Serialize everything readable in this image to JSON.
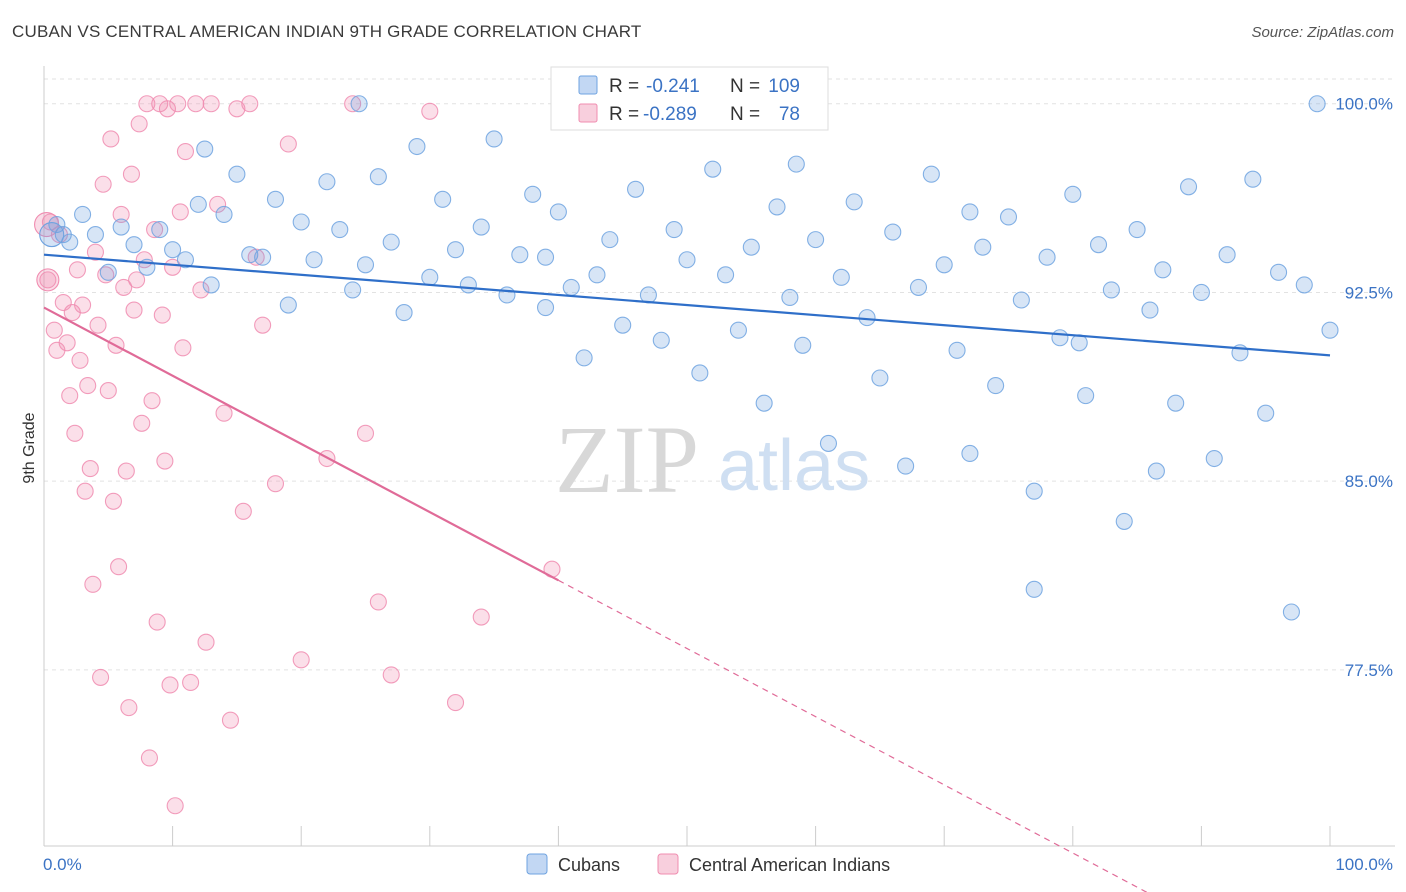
{
  "header": {
    "title": "CUBAN VS CENTRAL AMERICAN INDIAN 9TH GRADE CORRELATION CHART",
    "source": "Source: ZipAtlas.com"
  },
  "watermark": {
    "zip": "ZIP",
    "atlas": "atlas"
  },
  "colors": {
    "cubans": "#6fa3e0",
    "cubans_line": "#2f6fc9",
    "cai": "#f08cb0",
    "cai_line": "#e06b98",
    "tick_text": "#3b73c4"
  },
  "legend": {
    "r_label": "R =",
    "n_label": "N =",
    "rows": [
      {
        "r": "-0.241",
        "n": "109"
      },
      {
        "r": "-0.289",
        "n": "78"
      }
    ]
  },
  "chart_data": {
    "type": "scatter",
    "title": "CUBAN VS CENTRAL AMERICAN INDIAN 9TH GRADE CORRELATION CHART",
    "xlabel": "",
    "ylabel": "9th Grade",
    "xlim": [
      0,
      100
    ],
    "ylim": [
      70.5,
      101.5
    ],
    "x_tick_labels": [
      "0.0%",
      "100.0%"
    ],
    "y_ticks": [
      100.0,
      92.5,
      85.0,
      77.5
    ],
    "y_tick_labels": [
      "100.0%",
      "92.5%",
      "85.0%",
      "77.5%"
    ],
    "grid": true,
    "legend_position": "top-center",
    "series": [
      {
        "name": "Cubans",
        "trend": {
          "x0": 0,
          "y0": 94.0,
          "x1": 100,
          "y1": 90.0,
          "solid_to": 100
        },
        "points": [
          [
            1,
            95.2
          ],
          [
            2,
            94.5
          ],
          [
            3,
            95.6
          ],
          [
            4,
            94.8
          ],
          [
            5,
            93.3
          ],
          [
            6,
            95.1
          ],
          [
            7,
            94.4
          ],
          [
            8,
            93.5
          ],
          [
            9,
            95.0
          ],
          [
            10,
            94.2
          ],
          [
            11,
            93.8
          ],
          [
            12,
            96.0
          ],
          [
            13,
            92.8
          ],
          [
            14,
            95.6
          ],
          [
            15,
            97.2
          ],
          [
            16,
            94.0
          ],
          [
            17,
            93.9
          ],
          [
            18,
            96.2
          ],
          [
            19,
            92.0
          ],
          [
            20,
            95.3
          ],
          [
            21,
            93.8
          ],
          [
            22,
            96.9
          ],
          [
            23,
            95.0
          ],
          [
            24,
            92.6
          ],
          [
            25,
            93.6
          ],
          [
            26,
            97.1
          ],
          [
            27,
            94.5
          ],
          [
            28,
            91.7
          ],
          [
            29,
            98.3
          ],
          [
            30,
            93.1
          ],
          [
            31,
            96.2
          ],
          [
            32,
            94.2
          ],
          [
            33,
            92.8
          ],
          [
            34,
            95.1
          ],
          [
            35,
            98.6
          ],
          [
            36,
            92.4
          ],
          [
            37,
            94.0
          ],
          [
            38,
            96.4
          ],
          [
            39,
            93.9
          ],
          [
            40,
            95.7
          ],
          [
            41,
            92.7
          ],
          [
            42,
            89.9
          ],
          [
            43,
            93.2
          ],
          [
            44,
            94.6
          ],
          [
            45,
            91.2
          ],
          [
            46,
            96.6
          ],
          [
            47,
            92.4
          ],
          [
            48,
            90.6
          ],
          [
            49,
            95.0
          ],
          [
            50,
            93.8
          ],
          [
            51,
            89.3
          ],
          [
            52,
            97.4
          ],
          [
            53,
            93.2
          ],
          [
            54,
            91.0
          ],
          [
            55,
            94.3
          ],
          [
            56,
            88.1
          ],
          [
            57,
            95.9
          ],
          [
            58,
            92.3
          ],
          [
            59,
            90.4
          ],
          [
            60,
            94.6
          ],
          [
            61,
            86.5
          ],
          [
            62,
            93.1
          ],
          [
            63,
            96.1
          ],
          [
            64,
            91.5
          ],
          [
            65,
            89.1
          ],
          [
            66,
            94.9
          ],
          [
            67,
            85.6
          ],
          [
            68,
            92.7
          ],
          [
            69,
            97.2
          ],
          [
            70,
            93.6
          ],
          [
            71,
            90.2
          ],
          [
            72,
            86.1
          ],
          [
            73,
            94.3
          ],
          [
            74,
            88.8
          ],
          [
            75,
            95.5
          ],
          [
            76,
            92.2
          ],
          [
            77,
            84.6
          ],
          [
            78,
            93.9
          ],
          [
            79,
            90.7
          ],
          [
            80,
            96.4
          ],
          [
            81,
            88.4
          ],
          [
            82,
            94.4
          ],
          [
            83,
            92.6
          ],
          [
            84,
            83.4
          ],
          [
            85,
            95.0
          ],
          [
            86,
            91.8
          ],
          [
            87,
            93.4
          ],
          [
            88,
            88.1
          ],
          [
            89,
            96.7
          ],
          [
            90,
            92.5
          ],
          [
            91,
            85.9
          ],
          [
            92,
            94.0
          ],
          [
            93,
            90.1
          ],
          [
            94,
            97.0
          ],
          [
            95,
            87.7
          ],
          [
            96,
            93.3
          ],
          [
            97,
            79.8
          ],
          [
            98,
            92.8
          ],
          [
            99,
            100.0
          ],
          [
            100,
            91.0
          ],
          [
            1.5,
            94.8
          ],
          [
            12.5,
            98.2
          ],
          [
            24.5,
            100.0
          ],
          [
            39,
            91.9
          ],
          [
            58.5,
            97.6
          ],
          [
            72,
            95.7
          ],
          [
            80.5,
            90.5
          ],
          [
            86.5,
            85.4
          ],
          [
            77,
            80.7
          ]
        ]
      },
      {
        "name": "Central American Indians",
        "trend": {
          "x0": 0,
          "y0": 91.9,
          "x1": 100,
          "y1": 64.8,
          "solid_to": 40
        },
        "points": [
          [
            0.3,
            93.0
          ],
          [
            0.5,
            95.3
          ],
          [
            0.8,
            91.0
          ],
          [
            1.0,
            90.2
          ],
          [
            1.2,
            94.8
          ],
          [
            1.5,
            92.1
          ],
          [
            1.8,
            90.5
          ],
          [
            2.0,
            88.4
          ],
          [
            2.2,
            91.7
          ],
          [
            2.4,
            86.9
          ],
          [
            2.6,
            93.4
          ],
          [
            2.8,
            89.8
          ],
          [
            3.0,
            92.0
          ],
          [
            3.2,
            84.6
          ],
          [
            3.4,
            88.8
          ],
          [
            3.6,
            85.5
          ],
          [
            3.8,
            80.9
          ],
          [
            4.0,
            94.1
          ],
          [
            4.2,
            91.2
          ],
          [
            4.4,
            77.2
          ],
          [
            4.6,
            96.8
          ],
          [
            4.8,
            93.2
          ],
          [
            5.0,
            88.6
          ],
          [
            5.2,
            98.6
          ],
          [
            5.4,
            84.2
          ],
          [
            5.6,
            90.4
          ],
          [
            5.8,
            81.6
          ],
          [
            6.0,
            95.6
          ],
          [
            6.2,
            92.7
          ],
          [
            6.4,
            85.4
          ],
          [
            6.6,
            76.0
          ],
          [
            6.8,
            97.2
          ],
          [
            7.0,
            91.8
          ],
          [
            7.2,
            93.0
          ],
          [
            7.4,
            99.2
          ],
          [
            7.6,
            87.3
          ],
          [
            7.8,
            93.8
          ],
          [
            8.0,
            100.0
          ],
          [
            8.2,
            74.0
          ],
          [
            8.4,
            88.2
          ],
          [
            8.6,
            95.0
          ],
          [
            8.8,
            79.4
          ],
          [
            9.0,
            100.0
          ],
          [
            9.2,
            91.6
          ],
          [
            9.4,
            85.8
          ],
          [
            9.6,
            99.8
          ],
          [
            9.8,
            76.9
          ],
          [
            10.0,
            93.5
          ],
          [
            10.2,
            72.1
          ],
          [
            10.4,
            100.0
          ],
          [
            10.6,
            95.7
          ],
          [
            10.8,
            90.3
          ],
          [
            11.0,
            98.1
          ],
          [
            11.4,
            77.0
          ],
          [
            11.8,
            100.0
          ],
          [
            12.2,
            92.6
          ],
          [
            12.6,
            78.6
          ],
          [
            13.0,
            100.0
          ],
          [
            13.5,
            96.0
          ],
          [
            14.0,
            87.7
          ],
          [
            14.5,
            75.5
          ],
          [
            15.0,
            99.8
          ],
          [
            15.5,
            83.8
          ],
          [
            16.0,
            100.0
          ],
          [
            16.5,
            93.9
          ],
          [
            17.0,
            91.2
          ],
          [
            18.0,
            84.9
          ],
          [
            19.0,
            98.4
          ],
          [
            20.0,
            77.9
          ],
          [
            22.0,
            85.9
          ],
          [
            24.0,
            100.0
          ],
          [
            25.0,
            86.9
          ],
          [
            26.0,
            80.2
          ],
          [
            27.0,
            77.3
          ],
          [
            30.0,
            99.7
          ],
          [
            32.0,
            76.2
          ],
          [
            34.0,
            79.6
          ],
          [
            39.5,
            81.5
          ]
        ]
      }
    ]
  }
}
